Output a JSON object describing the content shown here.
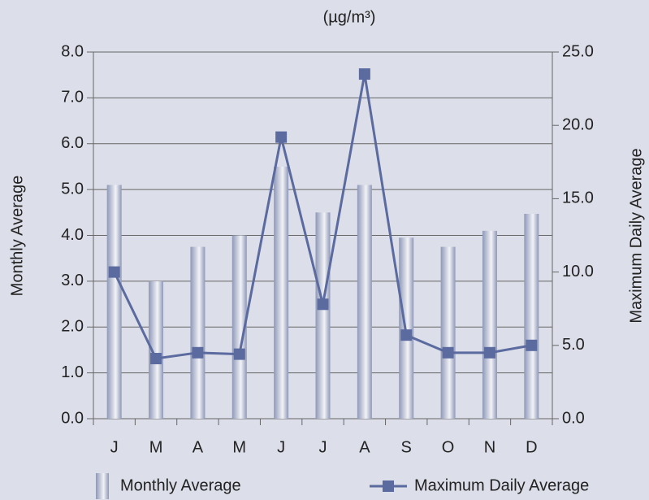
{
  "chart_data": {
    "type": "bar_line",
    "subtitle": "(µg/m³)",
    "y_label": "Monthly Average",
    "y2_label": "Maximum Daily Average",
    "categories": [
      "J",
      "M",
      "A",
      "M",
      "J",
      "J",
      "A",
      "S",
      "O",
      "N",
      "D"
    ],
    "series": [
      {
        "name": "Monthly Average",
        "type": "bar",
        "color": "#8e98b8",
        "values": [
          5.1,
          3.0,
          3.75,
          4.0,
          5.5,
          4.5,
          5.1,
          3.95,
          3.75,
          4.1,
          4.47
        ]
      },
      {
        "name": "Maximum Daily Average",
        "type": "line",
        "axis": "y2",
        "color": "#5b6a9f",
        "values": [
          10.0,
          4.1,
          4.5,
          4.4,
          19.2,
          7.8,
          23.5,
          5.7,
          4.5,
          4.5,
          5.0
        ]
      }
    ],
    "ylim": [
      0,
      8
    ],
    "yticks": [
      {
        "value": 0,
        "label": "0.0"
      },
      {
        "value": 1,
        "label": "1.0"
      },
      {
        "value": 2,
        "label": "2.0"
      },
      {
        "value": 3,
        "label": "3.0"
      },
      {
        "value": 4,
        "label": "4.0"
      },
      {
        "value": 5,
        "label": "5.0"
      },
      {
        "value": 6,
        "label": "6.0"
      },
      {
        "value": 7,
        "label": "7.0"
      },
      {
        "value": 8,
        "label": "8.0"
      }
    ],
    "y2lim": [
      0,
      25
    ],
    "y2ticks": [
      {
        "value": 0,
        "label": "0.0"
      },
      {
        "value": 5,
        "label": "5.0"
      },
      {
        "value": 10,
        "label": "10.0"
      },
      {
        "value": 15,
        "label": "15.0"
      },
      {
        "value": 20,
        "label": "20.0"
      },
      {
        "value": 25,
        "label": "25.0"
      }
    ],
    "grid": true
  }
}
